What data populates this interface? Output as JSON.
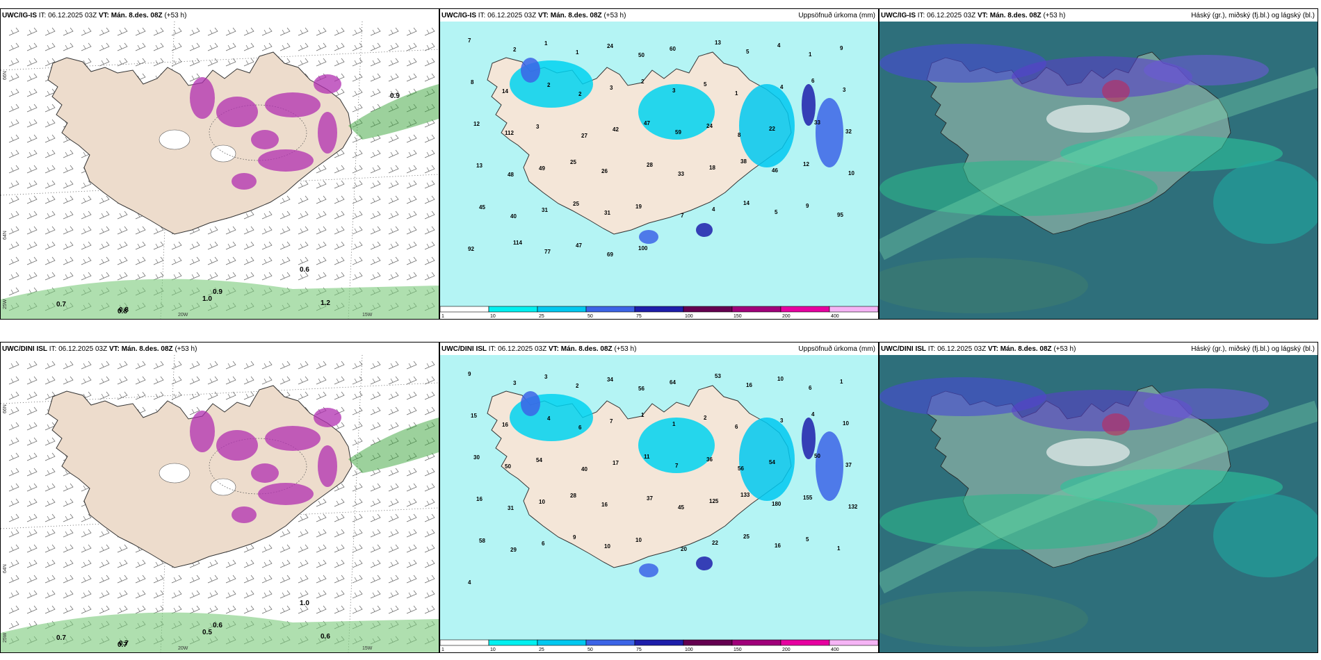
{
  "panels": [
    {
      "model": "UWC/IG-IS",
      "it_label": "IT:",
      "it": "06.12.2025 03Z",
      "vt_label": "VT:",
      "vt": "Mán. 8.des. 08Z",
      "lead": "(+53 h)",
      "type": "precip_wind",
      "right_title": "",
      "values": [
        "0.8",
        "1.0",
        "0.9",
        "1.2",
        "0.8",
        "0.7",
        "0.6",
        "0.9"
      ],
      "lat_labels": [
        "66N",
        "64N",
        "25W"
      ],
      "lon_labels": [
        "20W",
        "15W"
      ]
    },
    {
      "model": "UWC/IG-IS",
      "it_label": "IT:",
      "it": "06.12.2025 03Z",
      "vt_label": "VT:",
      "vt": "Mán. 8.des. 08Z",
      "lead": "(+53 h)",
      "type": "accum",
      "right_title": "Uppsöfnuð úrkoma (mm)",
      "values": [
        "7",
        "2",
        "1",
        "1",
        "24",
        "50",
        "60",
        "13",
        "5",
        "4",
        "1",
        "9",
        "8",
        "14",
        "2",
        "2",
        "3",
        "2",
        "3",
        "5",
        "1",
        "4",
        "6",
        "3",
        "12",
        "112",
        "3",
        "27",
        "42",
        "47",
        "59",
        "24",
        "8",
        "22",
        "33",
        "32",
        "13",
        "48",
        "49",
        "25",
        "26",
        "28",
        "33",
        "18",
        "38",
        "46",
        "12",
        "10",
        "45",
        "40",
        "31",
        "25",
        "31",
        "19",
        "7",
        "4",
        "14",
        "5",
        "9",
        "95",
        "92",
        "114",
        "77",
        "47",
        "69",
        "100"
      ],
      "colorbar_ticks": [
        "1",
        "10",
        "25",
        "50",
        "75",
        "100",
        "150",
        "200",
        "400"
      ],
      "colorbar_colors": [
        "#ffffff",
        "#00f0f0",
        "#00c8f0",
        "#3c64e6",
        "#1e1eaa",
        "#640050",
        "#a0007a",
        "#e600a0",
        "#f5b4f5"
      ]
    },
    {
      "model": "UWC/IG-IS",
      "it_label": "IT:",
      "it": "06.12.2025 03Z",
      "vt_label": "VT:",
      "vt": "Mán. 8.des. 08Z",
      "lead": "(+53 h)",
      "type": "cloud",
      "right_title": "Háský (gr.), miðský (fj.bl.) og lágský (bl.)"
    },
    {
      "model": "UWC/DINI ISL",
      "it_label": "IT:",
      "it": "06.12.2025 03Z",
      "vt_label": "VT:",
      "vt": "Mán. 8.des. 08Z",
      "lead": "(+53 h)",
      "type": "precip_wind",
      "right_title": "",
      "values": [
        "0.7",
        "0.5",
        "0.6",
        "0.6",
        "0.7",
        "0.7",
        "1.0"
      ],
      "lat_labels": [
        "66N",
        "64N",
        "25W"
      ],
      "lon_labels": [
        "20W",
        "15W"
      ]
    },
    {
      "model": "UWC/DINI ISL",
      "it_label": "IT:",
      "it": "06.12.2025 03Z",
      "vt_label": "VT:",
      "vt": "Mán. 8.des. 08Z",
      "lead": "(+53 h)",
      "type": "accum",
      "right_title": "Uppsöfnuð úrkoma (mm)",
      "values": [
        "9",
        "3",
        "3",
        "2",
        "34",
        "56",
        "64",
        "53",
        "16",
        "10",
        "6",
        "1",
        "15",
        "16",
        "4",
        "6",
        "7",
        "1",
        "1",
        "2",
        "6",
        "3",
        "4",
        "10",
        "30",
        "50",
        "54",
        "40",
        "17",
        "11",
        "7",
        "36",
        "56",
        "54",
        "50",
        "37",
        "16",
        "31",
        "10",
        "28",
        "16",
        "37",
        "45",
        "125",
        "133",
        "180",
        "155",
        "132",
        "58",
        "29",
        "6",
        "9",
        "10",
        "10",
        "20",
        "22",
        "25",
        "16",
        "5",
        "1",
        "4"
      ],
      "colorbar_ticks": [
        "1",
        "10",
        "25",
        "50",
        "75",
        "100",
        "150",
        "200",
        "400"
      ],
      "colorbar_colors": [
        "#ffffff",
        "#00f0f0",
        "#00c8f0",
        "#3c64e6",
        "#1e1eaa",
        "#640050",
        "#a0007a",
        "#e600a0",
        "#f5b4f5"
      ]
    },
    {
      "model": "UWC/DINI ISL",
      "it_label": "IT:",
      "it": "06.12.2025 03Z",
      "vt_label": "VT:",
      "vt": "Mán. 8.des. 08Z",
      "lead": "(+53 h)",
      "type": "cloud",
      "right_title": "Háský (gr.), miðský (fj.bl.) og lágský (bl.)"
    }
  ]
}
